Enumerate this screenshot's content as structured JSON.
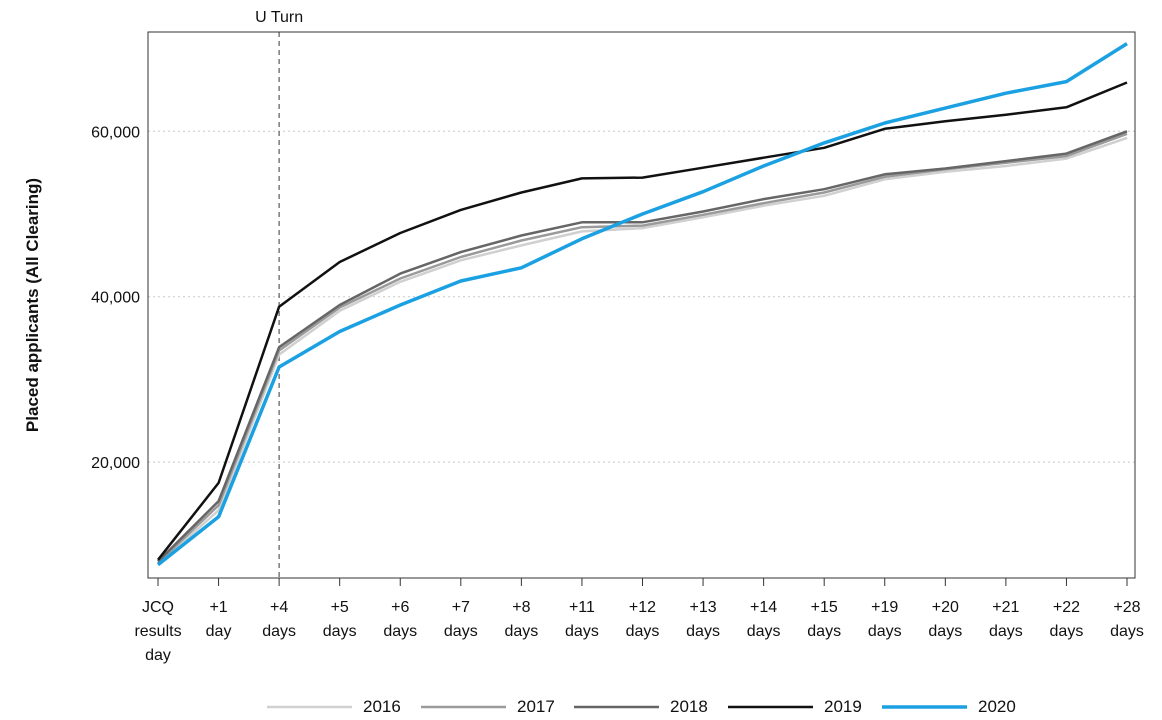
{
  "chart_data": {
    "type": "line",
    "title": "",
    "xlabel": "",
    "ylabel": "Placed applicants (All Clearing)",
    "categories": [
      [
        "JCQ",
        "results",
        "day"
      ],
      [
        "+1",
        "day"
      ],
      [
        "+4",
        "days"
      ],
      [
        "+5",
        "days"
      ],
      [
        "+6",
        "days"
      ],
      [
        "+7",
        "days"
      ],
      [
        "+8",
        "days"
      ],
      [
        "+11",
        "days"
      ],
      [
        "+12",
        "days"
      ],
      [
        "+13",
        "days"
      ],
      [
        "+14",
        "days"
      ],
      [
        "+15",
        "days"
      ],
      [
        "+19",
        "days"
      ],
      [
        "+20",
        "days"
      ],
      [
        "+21",
        "days"
      ],
      [
        "+22",
        "days"
      ],
      [
        "+28",
        "days"
      ]
    ],
    "ylim": [
      6000,
      72000
    ],
    "yticks": [
      20000,
      40000,
      60000
    ],
    "ytick_labels": [
      "20,000",
      "40,000",
      "60,000"
    ],
    "grid": "horizontal-dotted",
    "legend": "bottom",
    "annotation": {
      "label": "U Turn",
      "category_index": 2
    },
    "series": [
      {
        "name": "2016",
        "color": "#d0d0d0",
        "values": [
          7600,
          14200,
          33000,
          38300,
          41800,
          44400,
          46200,
          47900,
          48300,
          49600,
          51000,
          52200,
          54200,
          55100,
          55800,
          56700,
          59200
        ]
      },
      {
        "name": "2017",
        "color": "#9a9a9a",
        "values": [
          7800,
          14800,
          33500,
          38700,
          42200,
          44800,
          46800,
          48400,
          48600,
          49900,
          51300,
          52600,
          54500,
          55400,
          56200,
          57000,
          59700
        ]
      },
      {
        "name": "2018",
        "color": "#666666",
        "values": [
          8000,
          15300,
          33900,
          39000,
          42800,
          45400,
          47400,
          49000,
          49000,
          50300,
          51800,
          53000,
          54800,
          55500,
          56400,
          57300,
          60000
        ]
      },
      {
        "name": "2019",
        "color": "#111111",
        "values": [
          8200,
          17500,
          38800,
          44200,
          47700,
          50500,
          52600,
          54300,
          54400,
          55600,
          56800,
          58000,
          60300,
          61200,
          62000,
          62900,
          65900
        ]
      },
      {
        "name": "2020",
        "color": "#1ba1e2",
        "values": [
          7600,
          13400,
          31500,
          35800,
          39000,
          41900,
          43500,
          47000,
          50000,
          52700,
          55800,
          58600,
          61000,
          62800,
          64600,
          66000,
          70600
        ]
      }
    ]
  }
}
